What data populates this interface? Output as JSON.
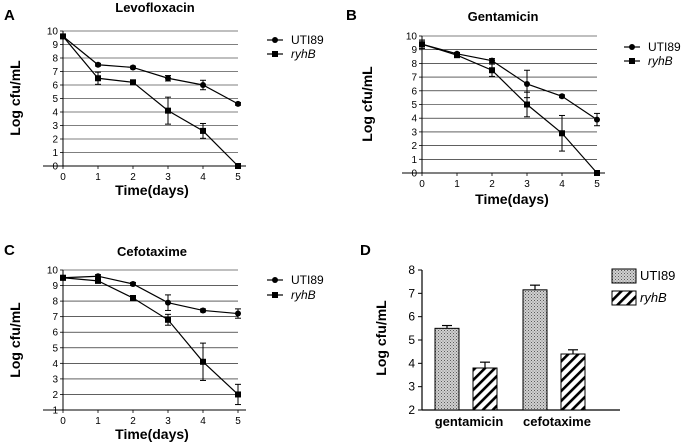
{
  "chart_data": [
    {
      "panel": "A",
      "type": "line",
      "title": "Levofloxacin",
      "xlabel": "Time(days)",
      "ylabel": "Log cfu/mL",
      "x": [
        0,
        1,
        2,
        3,
        4,
        5
      ],
      "xticks": [
        "0",
        "1",
        "2",
        "3",
        "4",
        "5"
      ],
      "xlim": [
        0,
        5
      ],
      "ylim": [
        0,
        10
      ],
      "yticks": [
        0,
        1,
        2,
        3,
        4,
        5,
        6,
        7,
        8,
        9,
        10
      ],
      "grid": true,
      "legend": "top-right",
      "series": [
        {
          "name": "UTI89",
          "marker": "circle",
          "values": [
            9.6,
            7.5,
            7.3,
            6.5,
            6.0,
            4.6
          ],
          "err": [
            0.15,
            0.1,
            0.1,
            0.2,
            0.35,
            0.1
          ]
        },
        {
          "name": "ryhB",
          "italic": true,
          "marker": "square",
          "values": [
            9.6,
            6.5,
            6.2,
            4.1,
            2.6,
            0.0
          ],
          "err": [
            0.15,
            0.45,
            0.1,
            1.0,
            0.55,
            0.0
          ]
        }
      ]
    },
    {
      "panel": "B",
      "type": "line",
      "title": "Gentamicin",
      "xlabel": "Time(days)",
      "ylabel": "Log cfu/mL",
      "x": [
        0,
        1,
        2,
        3,
        4,
        5
      ],
      "xticks": [
        "0",
        "1",
        "2",
        "3",
        "4",
        "5"
      ],
      "xlim": [
        0,
        5
      ],
      "ylim": [
        0,
        10
      ],
      "yticks": [
        0,
        1,
        2,
        3,
        4,
        5,
        6,
        7,
        8,
        9,
        10
      ],
      "grid": true,
      "legend": "top-right",
      "series": [
        {
          "name": "UTI89",
          "marker": "circle",
          "values": [
            9.4,
            8.7,
            8.2,
            6.5,
            5.6,
            3.9
          ],
          "err": [
            0.3,
            0.1,
            0.15,
            1.0,
            0.1,
            0.45
          ]
        },
        {
          "name": "ryhB",
          "italic": true,
          "marker": "square",
          "values": [
            9.4,
            8.6,
            7.5,
            5.0,
            2.9,
            0.0
          ],
          "err": [
            0.3,
            0.1,
            0.45,
            0.9,
            1.3,
            0.0
          ]
        }
      ]
    },
    {
      "panel": "C",
      "type": "line",
      "title": "Cefotaxime",
      "xlabel": "Time(days)",
      "ylabel": "Log cfu/mL",
      "x": [
        0,
        1,
        2,
        3,
        4,
        5
      ],
      "xticks": [
        "0",
        "1",
        "2",
        "3",
        "4",
        "5"
      ],
      "xlim": [
        0,
        5
      ],
      "ylim": [
        1,
        10
      ],
      "yticks": [
        1,
        2,
        3,
        4,
        5,
        6,
        7,
        8,
        9,
        10
      ],
      "grid": true,
      "legend": "top-right",
      "series": [
        {
          "name": "UTI89",
          "marker": "circle",
          "values": [
            9.5,
            9.6,
            9.1,
            7.9,
            7.4,
            7.2
          ],
          "err": [
            0.15,
            0.1,
            0.1,
            0.5,
            0.1,
            0.3
          ]
        },
        {
          "name": "ryhB",
          "italic": true,
          "marker": "square",
          "values": [
            9.5,
            9.3,
            8.2,
            6.8,
            4.1,
            2.0
          ],
          "err": [
            0.15,
            0.1,
            0.1,
            0.35,
            1.2,
            0.65
          ]
        }
      ]
    },
    {
      "panel": "D",
      "type": "bar",
      "title": "",
      "xlabel": "",
      "ylabel": "Log cfu/mL",
      "categories": [
        "gentamicin",
        "cefotaxime"
      ],
      "ylim": [
        2,
        8
      ],
      "yticks": [
        2,
        3,
        4,
        5,
        6,
        7,
        8
      ],
      "grid": false,
      "legend": "top-right",
      "series": [
        {
          "name": "UTI89",
          "pattern": "crosshatch",
          "values": [
            5.5,
            7.15
          ],
          "err": [
            0.12,
            0.2
          ]
        },
        {
          "name": "ryhB",
          "italic": true,
          "pattern": "diagonal",
          "values": [
            3.8,
            4.4
          ],
          "err": [
            0.25,
            0.18
          ]
        }
      ]
    }
  ]
}
